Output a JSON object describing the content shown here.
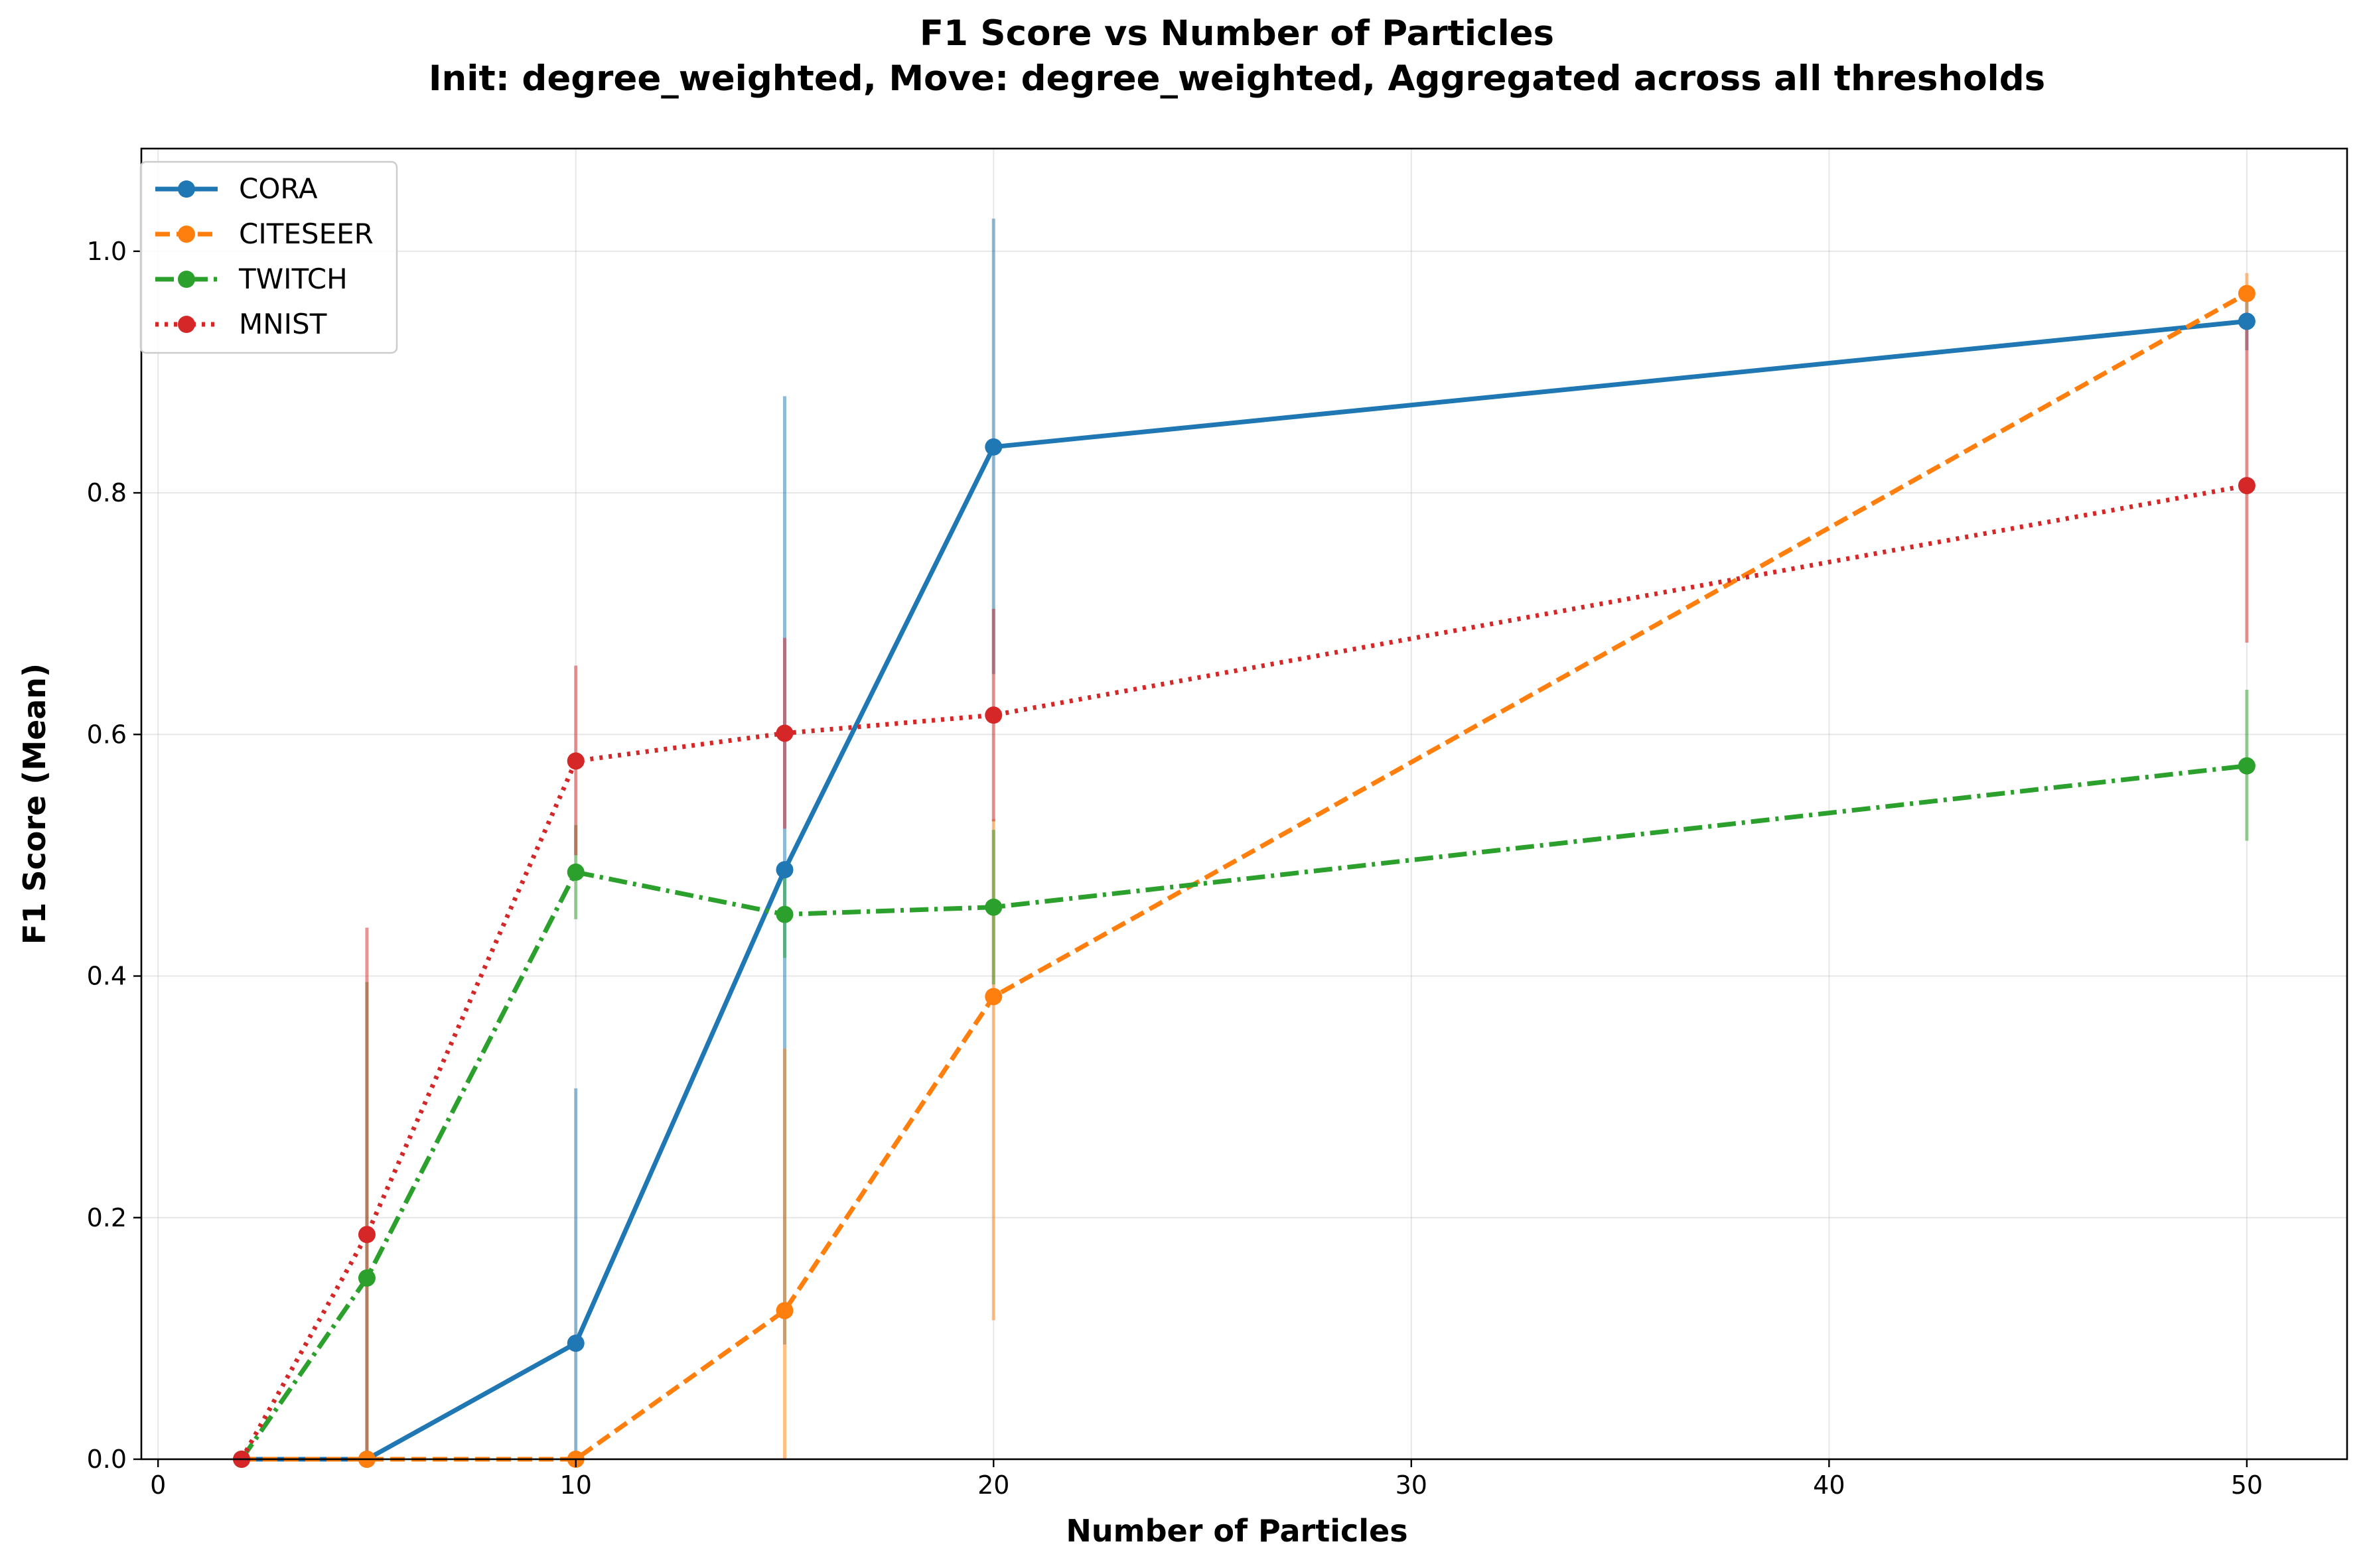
{
  "chart_data": {
    "type": "line",
    "title": "F1 Score vs Number of Particles",
    "subtitle": "Init: degree_weighted, Move: degree_weighted, Aggregated across all thresholds",
    "xlabel": "Number of Particles",
    "ylabel": "F1 Score (Mean)",
    "xlim": [
      -0.4,
      52.4
    ],
    "ylim": [
      0.0,
      1.085
    ],
    "xticks": [
      0,
      10,
      20,
      30,
      40,
      50
    ],
    "yticks": [
      0.0,
      0.2,
      0.4,
      0.6,
      0.8,
      1.0
    ],
    "xtick_labels": [
      "0",
      "10",
      "20",
      "30",
      "40",
      "50"
    ],
    "ytick_labels": [
      "0.0",
      "0.2",
      "0.4",
      "0.6",
      "0.8",
      "1.0"
    ],
    "grid": true,
    "legend_position": "top-left",
    "x": [
      2,
      5,
      10,
      15,
      20,
      50
    ],
    "series": [
      {
        "name": "CORA",
        "color": "#1f77b4",
        "line_style": "solid",
        "values": [
          0.0,
          0.0,
          0.096,
          0.488,
          0.838,
          0.942
        ],
        "error_low": [
          0.0,
          0.0,
          0.0,
          0.095,
          0.65,
          0.918
        ],
        "error_high": [
          0.0,
          0.0,
          0.307,
          0.88,
          1.027,
          0.966
        ]
      },
      {
        "name": "CITESEER",
        "color": "#ff7f0e",
        "line_style": "dashed",
        "values": [
          0.0,
          0.0,
          0.0,
          0.123,
          0.383,
          0.965
        ],
        "error_low": [
          0.0,
          0.0,
          0.0,
          0.0,
          0.115,
          0.948
        ],
        "error_high": [
          0.0,
          0.0,
          0.0,
          0.34,
          0.53,
          0.982
        ]
      },
      {
        "name": "TWITCH",
        "color": "#2ca02c",
        "line_style": "dashdot",
        "values": [
          0.0,
          0.15,
          0.486,
          0.451,
          0.457,
          0.574
        ],
        "error_low": [
          0.0,
          0.0,
          0.447,
          0.415,
          0.393,
          0.512
        ],
        "error_high": [
          0.0,
          0.395,
          0.525,
          0.487,
          0.521,
          0.637
        ]
      },
      {
        "name": "MNIST",
        "color": "#d62728",
        "line_style": "dotted",
        "values": [
          0.0,
          0.186,
          0.578,
          0.601,
          0.616,
          0.806
        ],
        "error_low": [
          0.0,
          0.0,
          0.5,
          0.522,
          0.528,
          0.676
        ],
        "error_high": [
          0.0,
          0.44,
          0.657,
          0.68,
          0.704,
          0.936
        ]
      }
    ]
  }
}
